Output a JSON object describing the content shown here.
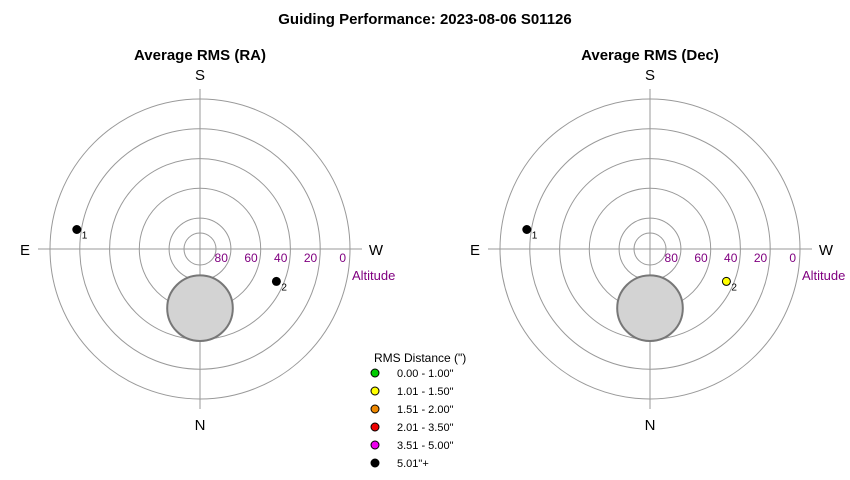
{
  "title": "Guiding Performance: 2023-08-06 S01126",
  "compass": {
    "south": "S",
    "north": "N",
    "east": "E",
    "west": "W"
  },
  "altitude_label": "Altitude",
  "altitude_ticks": [
    "80",
    "60",
    "40",
    "20",
    "0"
  ],
  "legend": {
    "title": "RMS Distance (\")",
    "items": [
      {
        "label": "0.00 - 1.00\"",
        "color": "#00cc00"
      },
      {
        "label": "1.01 - 1.50\"",
        "color": "#ffff00"
      },
      {
        "label": "1.51 - 2.00\"",
        "color": "#ee8800"
      },
      {
        "label": "2.01 - 3.50\"",
        "color": "#ee0000"
      },
      {
        "label": "3.51 - 5.00\"",
        "color": "#ee00ee"
      },
      {
        "label": "5.01\"+",
        "color": "#000000"
      }
    ]
  },
  "colors": {
    "ring": "#999999",
    "axis": "#999999",
    "tick": "#800080",
    "blocked_fill": "#d3d3d3",
    "blocked_stroke": "#777777"
  },
  "chart_data": [
    {
      "type": "scatter",
      "coordinate_system": "polar (azimuth, altitude)",
      "title": "Average RMS (RA)",
      "altitude_range": [
        0,
        90
      ],
      "points": [
        {
          "label": "1",
          "azimuth_deg": 99,
          "altitude_deg": 17,
          "rms_bin": "5.01\"+",
          "color": "#000000"
        },
        {
          "label": "2",
          "azimuth_deg": 293,
          "altitude_deg": 45,
          "rms_bin": "5.01\"+",
          "color": "#000000"
        }
      ],
      "blocked_region": {
        "azimuth_deg": 0,
        "altitude_center_deg": 61,
        "radius_deg": 22
      }
    },
    {
      "type": "scatter",
      "coordinate_system": "polar (azimuth, altitude)",
      "title": "Average RMS (Dec)",
      "altitude_range": [
        0,
        90
      ],
      "points": [
        {
          "label": "1",
          "azimuth_deg": 99,
          "altitude_deg": 17,
          "rms_bin": "5.01\"+",
          "color": "#000000"
        },
        {
          "label": "2",
          "azimuth_deg": 293,
          "altitude_deg": 45,
          "rms_bin": "1.01 - 1.50\"",
          "color": "#ffff00"
        }
      ],
      "blocked_region": {
        "azimuth_deg": 0,
        "altitude_center_deg": 61,
        "radius_deg": 22
      }
    }
  ]
}
